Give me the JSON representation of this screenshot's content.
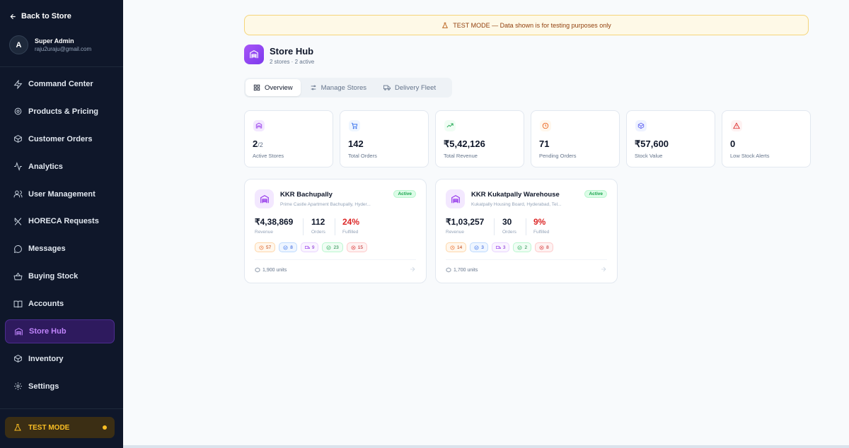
{
  "sidebar": {
    "back_label": "Back to Store",
    "user": {
      "initial": "A",
      "name": "Super Admin",
      "email": "raju2uraju@gmail.com"
    },
    "items": [
      {
        "label": "Command Center",
        "icon": "zap-icon"
      },
      {
        "label": "Products & Pricing",
        "icon": "gear-icon"
      },
      {
        "label": "Customer Orders",
        "icon": "package-icon"
      },
      {
        "label": "Analytics",
        "icon": "activity-icon"
      },
      {
        "label": "User Management",
        "icon": "users-icon"
      },
      {
        "label": "HORECA Requests",
        "icon": "utensils-icon"
      },
      {
        "label": "Messages",
        "icon": "message-icon"
      },
      {
        "label": "Buying Stock",
        "icon": "basket-icon"
      },
      {
        "label": "Accounts",
        "icon": "book-icon"
      },
      {
        "label": "Store Hub",
        "icon": "warehouse-icon",
        "active": true
      },
      {
        "label": "Inventory",
        "icon": "box-icon"
      },
      {
        "label": "Settings",
        "icon": "cog-icon"
      }
    ],
    "test_mode_label": "TEST MODE"
  },
  "banner": {
    "text": "TEST MODE — Data shown is for testing purposes only"
  },
  "header": {
    "title": "Store Hub",
    "subtitle": "2 stores · 2 active"
  },
  "tabs": [
    {
      "label": "Overview",
      "active": true
    },
    {
      "label": "Manage Stores"
    },
    {
      "label": "Delivery Fleet"
    }
  ],
  "stats": [
    {
      "value": "2",
      "suffix": "/2",
      "label": "Active Stores",
      "icon": "warehouse-icon",
      "color": "#9333ea",
      "bg": "#f3e8ff"
    },
    {
      "value": "142",
      "suffix": "",
      "label": "Total Orders",
      "icon": "cart-icon",
      "color": "#2563eb",
      "bg": "#eff6ff"
    },
    {
      "value": "₹5,42,126",
      "suffix": "",
      "label": "Total Revenue",
      "icon": "trending-up-icon",
      "color": "#16a34a",
      "bg": "#f0fdf4"
    },
    {
      "value": "71",
      "suffix": "",
      "label": "Pending Orders",
      "icon": "clock-icon",
      "color": "#ea580c",
      "bg": "#fff7ed"
    },
    {
      "value": "₹57,600",
      "suffix": "",
      "label": "Stock Value",
      "icon": "box-icon",
      "color": "#6366f1",
      "bg": "#eef2ff"
    },
    {
      "value": "0",
      "suffix": "",
      "label": "Low Stock Alerts",
      "icon": "alert-icon",
      "color": "#dc2626",
      "bg": "#fef2f2"
    }
  ],
  "stores": [
    {
      "name": "KKR Bachupally",
      "address": "Prime Castle Apartment Bachupally, Hyder...",
      "status": "Active",
      "revenue": "₹4,38,869",
      "revenue_label": "Revenue",
      "orders": "112",
      "orders_label": "Orders",
      "fulfilled": "24%",
      "fulfilled_label": "Fulfilled",
      "chips": [
        "57",
        "8",
        "9",
        "23",
        "15"
      ],
      "units": "1,900 units"
    },
    {
      "name": "KKR Kukatpally Warehouse",
      "address": "Kukatpally Housing Board, Hyderabad, Tel...",
      "status": "Active",
      "revenue": "₹1,03,257",
      "revenue_label": "Revenue",
      "orders": "30",
      "orders_label": "Orders",
      "fulfilled": "9%",
      "fulfilled_label": "Fulfilled",
      "chips": [
        "14",
        "3",
        "3",
        "2",
        "8"
      ],
      "units": "1,700 units"
    }
  ]
}
